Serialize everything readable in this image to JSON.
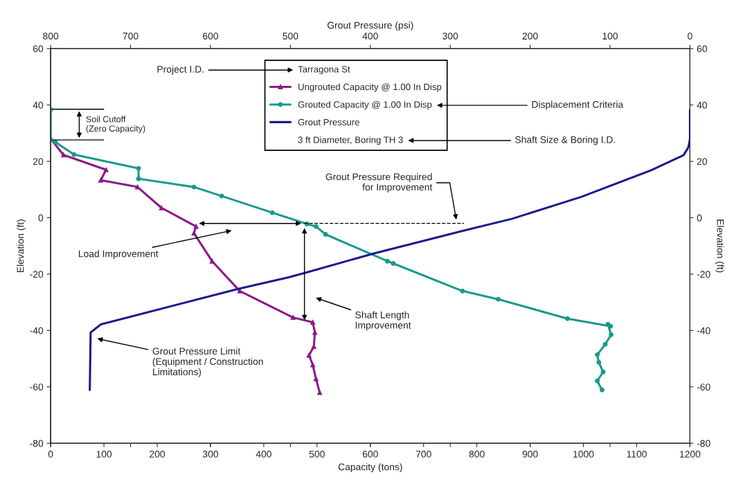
{
  "chart_data": {
    "type": "line",
    "xlabel": "Capacity (tons)",
    "ylabel": "Elevation (ft)",
    "x2label": "Grout Pressure (psi)",
    "y2label": "Elevation (ft)",
    "xlim": [
      0,
      1200
    ],
    "xticks": [
      0,
      100,
      200,
      300,
      400,
      500,
      600,
      700,
      800,
      900,
      1000,
      1100,
      1200
    ],
    "x2lim": [
      800,
      0
    ],
    "x2ticks": [
      800,
      700,
      600,
      500,
      400,
      300,
      200,
      100,
      0
    ],
    "ylim": [
      -80,
      60
    ],
    "yticks": [
      -80,
      -60,
      -40,
      -20,
      0,
      20,
      40,
      60
    ],
    "y2lim": [
      -80,
      60
    ],
    "y2ticks": [
      -80,
      -60,
      -40,
      -20,
      0,
      20,
      40,
      60
    ],
    "grid": false,
    "legend": "top",
    "line_style": "solid",
    "series": [
      {
        "name": "Ungrouted Capacity @ 1.00 In Disp",
        "color": "#8b1a89",
        "marker": "triangle",
        "x": [
          0,
          24,
          104,
          94,
          163,
          208,
          273,
          269,
          303,
          355,
          455,
          492,
          496,
          494,
          485,
          492,
          498,
          505
        ],
        "values": [
          28,
          22.3,
          17,
          13.3,
          10.9,
          3.5,
          -3.1,
          -5.5,
          -15.4,
          -26,
          -35.4,
          -37.1,
          -40.7,
          -45.7,
          -48.8,
          -52.2,
          -57.1,
          -62
        ]
      },
      {
        "name": "Grouted Capacity @ 1.00 In Disp",
        "color": "#1a9a8a",
        "marker": "circle",
        "x": [
          0,
          0,
          9,
          44,
          165,
          165,
          269,
          321,
          416,
          481,
          498,
          516,
          632,
          643,
          773,
          840,
          970,
          1051,
          1046,
          1052,
          1041,
          1026,
          1029,
          1037,
          1026,
          1035
        ],
        "values": [
          38.4,
          27.6,
          26.8,
          22.4,
          17.5,
          13.8,
          10.9,
          7.7,
          1.8,
          -2.2,
          -3.1,
          -5.9,
          -15.4,
          -16.2,
          -26,
          -28.9,
          -35.8,
          -38.5,
          -37.8,
          -41.5,
          -44.9,
          -48.6,
          -51.3,
          -54.7,
          -57.9,
          -61.1
        ]
      },
      {
        "name": "Grout Pressure",
        "color": "#1a1a8c",
        "marker": "none",
        "axis": "x2",
        "x": [
          0,
          0,
          2,
          8,
          49,
          136,
          223,
          281,
          396,
          482,
          502,
          566,
          737,
          750,
          751
        ],
        "values": [
          38.1,
          28,
          25,
          22.2,
          16.8,
          7.4,
          -0.4,
          -4.4,
          -12.7,
          -19.6,
          -21.1,
          -25.3,
          -37.8,
          -40.7,
          -61.1
        ]
      },
      {
        "color": "#000000",
        "line_style": "dashed",
        "marker": "none",
        "x": [
          476,
          776
        ],
        "values": [
          -2,
          -2
        ]
      }
    ],
    "annotations": [
      "Tarragona St",
      "3 ft Diameter, Boring TH 3",
      "Project I.D.",
      "Displacement Criteria",
      "Shaft Size & Boring I.D.",
      {
        "text": "Soil Cutoff\n(Zero Capacity)",
        "x": 0,
        "y": 38.5
      },
      "Grout Pressure Required\nfor Improvement",
      "Load Improvement",
      "Shaft Length\nImprovement",
      "Grout Pressure Limit\n(Equipment / Construction\nLimitations)"
    ]
  }
}
